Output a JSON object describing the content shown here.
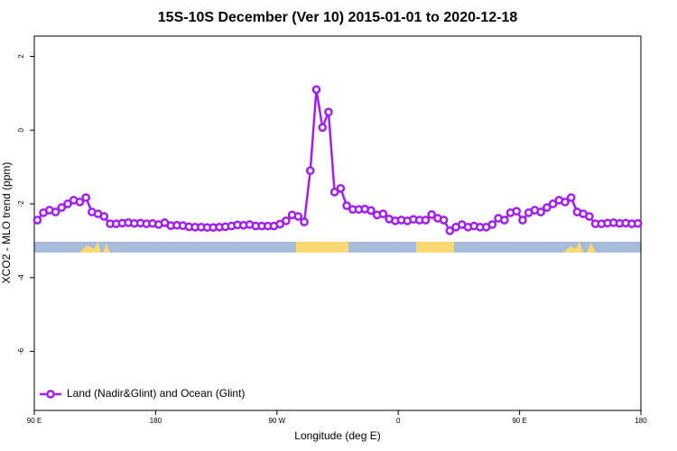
{
  "chart_data": {
    "type": "line",
    "title": "15S-10S December (Ver 10)   2015-01-01 to 2020-12-18",
    "xlabel": "Longitude (deg E)",
    "ylabel": "XCO2 - MLO trend (ppm)",
    "x": [
      92.25,
      96.75,
      101.25,
      105.75,
      110.25,
      114.75,
      119.25,
      123.75,
      128.25,
      132.75,
      137.25,
      141.75,
      146.25,
      150.75,
      155.25,
      159.75,
      164.25,
      168.75,
      173.25,
      177.75,
      182.25,
      186.75,
      191.25,
      195.75,
      200.25,
      204.75,
      209.25,
      213.75,
      218.25,
      222.75,
      227.25,
      231.75,
      236.25,
      240.75,
      245.25,
      249.75,
      254.25,
      258.75,
      263.25,
      267.75,
      272.25,
      276.75,
      281.25,
      285.75,
      290.25,
      294.75,
      299.25,
      303.75,
      308.25,
      312.75,
      317.25,
      321.75,
      326.25,
      330.75,
      335.25,
      339.75,
      344.25,
      348.75,
      353.25,
      357.75,
      362.25,
      366.75,
      371.25,
      375.75,
      380.25,
      384.75,
      389.25,
      393.75,
      398.25,
      402.75,
      407.25,
      411.75,
      416.25,
      420.75,
      425.25,
      429.75,
      434.25,
      438.75,
      443.25,
      447.75,
      452.25,
      456.75,
      461.25,
      465.75,
      470.25,
      474.75,
      479.25,
      483.75,
      488.25,
      492.75,
      497.25,
      501.75,
      506.25,
      510.75,
      515.25,
      519.75,
      524.25,
      528.75,
      533.25,
      537.75
    ],
    "series": [
      {
        "name": "Land (Nadir&Glint) and Ocean (Glint)",
        "color": "#a020f0",
        "values": [
          -2.44,
          -2.24,
          -2.17,
          -2.22,
          -2.1,
          -2.0,
          -1.9,
          -1.95,
          -1.83,
          -2.22,
          -2.27,
          -2.34,
          -2.54,
          -2.54,
          -2.52,
          -2.51,
          -2.53,
          -2.52,
          -2.54,
          -2.53,
          -2.56,
          -2.51,
          -2.59,
          -2.58,
          -2.59,
          -2.62,
          -2.63,
          -2.63,
          -2.64,
          -2.64,
          -2.63,
          -2.62,
          -2.6,
          -2.57,
          -2.58,
          -2.56,
          -2.6,
          -2.6,
          -2.6,
          -2.6,
          -2.55,
          -2.46,
          -2.3,
          -2.34,
          -2.49,
          -1.1,
          1.1,
          0.07,
          0.49,
          -1.68,
          -1.58,
          -2.05,
          -2.15,
          -2.15,
          -2.14,
          -2.18,
          -2.3,
          -2.27,
          -2.41,
          -2.46,
          -2.44,
          -2.46,
          -2.42,
          -2.44,
          -2.44,
          -2.29,
          -2.39,
          -2.44,
          -2.73,
          -2.63,
          -2.56,
          -2.63,
          -2.6,
          -2.63,
          -2.63,
          -2.56,
          -2.39,
          -2.44,
          -2.24,
          -2.2,
          -2.44,
          -2.24,
          -2.17,
          -2.22,
          -2.1,
          -2.0,
          -1.9,
          -1.95,
          -1.83,
          -2.22,
          -2.27,
          -2.34,
          -2.54,
          -2.54,
          -2.52,
          -2.51,
          -2.53,
          -2.52,
          -2.54,
          -2.53
        ]
      }
    ],
    "xlim": [
      90,
      540
    ],
    "xticks": [
      {
        "value": 90,
        "label": "90 E"
      },
      180,
      {
        "value": 270,
        "label": "90 W"
      },
      0.0,
      {
        "value": 450,
        "label": "90 E"
      },
      {
        "value": 540,
        "label": "180"
      }
    ],
    "ylim": [
      -7.6,
      2.55
    ],
    "yticks": [
      -6,
      -4,
      -2,
      0,
      2
    ],
    "legend": "bottomleft"
  }
}
